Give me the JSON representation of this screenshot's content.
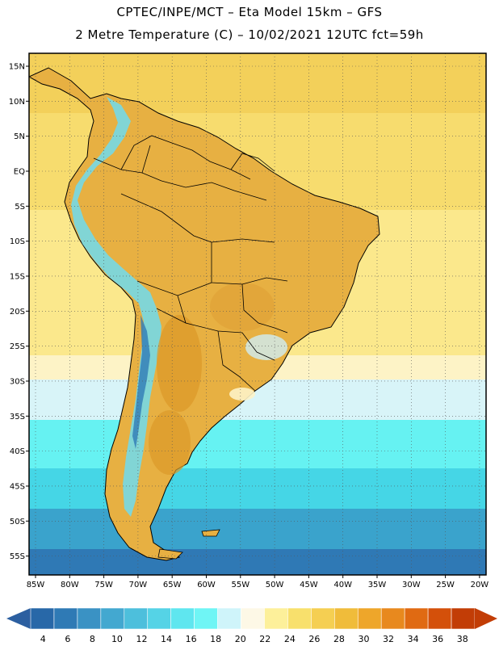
{
  "header": {
    "line1": "CPTEC/INPE/MCT –  Eta Model 15km – GFS",
    "line2": "2 Metre Temperature (C) – 10/02/2021 12UTC fct=59h"
  },
  "map": {
    "lat_labels": [
      "15N",
      "10N",
      "5N",
      "EQ",
      "5S",
      "10S",
      "15S",
      "20S",
      "25S",
      "30S",
      "35S",
      "40S",
      "45S",
      "50S",
      "55S"
    ],
    "lon_labels": [
      "85W",
      "80W",
      "75W",
      "70W",
      "65W",
      "60W",
      "55W",
      "50W",
      "45W",
      "40W",
      "35W",
      "30W",
      "25W",
      "20W"
    ],
    "ocean_bands": [
      {
        "color": "#f3d05a"
      },
      {
        "color": "#f7dc6e"
      },
      {
        "color": "#fbe88c"
      },
      {
        "color": "#fdf3c6"
      },
      {
        "color": "#d8f4f8"
      },
      {
        "color": "#66f2f2"
      },
      {
        "color": "#45d6e6"
      },
      {
        "color": "#3aa3cc"
      },
      {
        "color": "#2f79b5"
      }
    ],
    "land_color": "#e7b042",
    "border_color": "#000000"
  },
  "colorbar": {
    "labels": [
      "4",
      "6",
      "8",
      "10",
      "12",
      "14",
      "16",
      "18",
      "20",
      "22",
      "24",
      "26",
      "28",
      "30",
      "32",
      "34",
      "36",
      "38"
    ],
    "colors": [
      "#2868a8",
      "#2f7ab5",
      "#3a92c4",
      "#43a8d0",
      "#4dbfdc",
      "#55d3e6",
      "#5fe6ef",
      "#6ff5f5",
      "#cff4fa",
      "#fdf8e6",
      "#fdf09a",
      "#f8e06c",
      "#f5cf52",
      "#f0bc3a",
      "#eea62a",
      "#e8891e",
      "#e06a12",
      "#d4500a",
      "#c23d06"
    ],
    "low_arrow_color": "#2c5fa0",
    "high_arrow_color": "#c23d06"
  }
}
